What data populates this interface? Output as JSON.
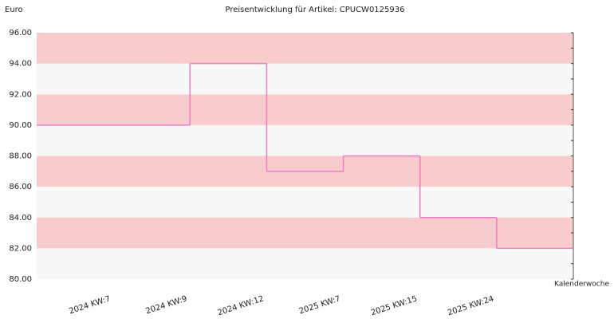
{
  "chart_data": {
    "type": "step",
    "title": "Preisentwicklung für Artikel: CPUCW0125936",
    "y_label": "Euro",
    "x_label": "Kalenderwoche",
    "categories": [
      "2024 KW:7",
      "2024 KW:9",
      "2024 KW:12",
      "2025 KW:7",
      "2025 KW:15",
      "2025 KW:24"
    ],
    "values": [
      90,
      94,
      87,
      88,
      84,
      82
    ],
    "color": "#ee7cc8",
    "band_colors": [
      "#f8f8f8",
      "#f8cccc"
    ],
    "ylim": [
      80,
      96
    ],
    "yticks": [
      {
        "value": 80,
        "label": "80.00"
      },
      {
        "value": 82,
        "label": "82.00"
      },
      {
        "value": 84,
        "label": "84.00"
      },
      {
        "value": 86,
        "label": "86.00"
      },
      {
        "value": 88,
        "label": "88.00"
      },
      {
        "value": 90,
        "label": "90.00"
      },
      {
        "value": 92,
        "label": "92.00"
      },
      {
        "value": 94,
        "label": "94.00"
      },
      {
        "value": 96,
        "label": "96.00"
      }
    ]
  }
}
